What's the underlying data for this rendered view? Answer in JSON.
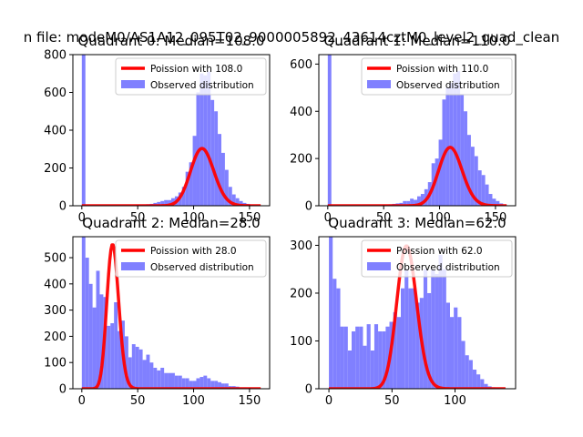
{
  "suptitle": "n file: modeM0/AS1A12_095T02_9000005892_43614cztM0_level2_quad_clean",
  "colors": {
    "hist": "#8080ff",
    "fit": "#ff0000",
    "axis": "#000000"
  },
  "chart_data": [
    {
      "type": "bar",
      "title": "Quadrant 0: Median=108.0",
      "xlabel": "",
      "ylabel": "",
      "xlim": [
        -8,
        168
      ],
      "ylim": [
        0,
        800
      ],
      "xticks": [
        0,
        50,
        100,
        150
      ],
      "yticks": [
        0,
        200,
        400,
        600,
        800
      ],
      "bin_width": 3.2,
      "series": [
        {
          "name": "Observed distribution",
          "kind": "hist",
          "bin_starts": [
            0,
            3.2,
            6.4,
            9.6,
            12.8,
            16,
            19.2,
            22.4,
            25.6,
            28.8,
            32,
            35.2,
            38.4,
            41.6,
            44.8,
            48,
            51.2,
            54.4,
            57.6,
            60.8,
            64,
            67.2,
            70.4,
            73.6,
            76.8,
            80,
            83.2,
            86.4,
            89.6,
            92.8,
            96,
            99.2,
            102.4,
            105.6,
            108.8,
            112,
            115.2,
            118.4,
            121.6,
            124.8,
            128,
            131.2,
            134.4,
            137.6,
            140.8,
            144,
            147.2,
            150.4,
            153.6,
            156.8
          ],
          "counts": [
            800,
            0,
            0,
            0,
            0,
            0,
            0,
            0,
            0,
            0,
            1,
            1,
            2,
            2,
            3,
            4,
            5,
            6,
            8,
            10,
            15,
            20,
            25,
            30,
            30,
            40,
            50,
            70,
            100,
            180,
            230,
            370,
            600,
            700,
            690,
            710,
            560,
            500,
            380,
            280,
            190,
            100,
            60,
            40,
            25,
            15,
            10,
            5,
            3,
            2
          ]
        },
        {
          "name": "Poission with 108.0",
          "kind": "pmf",
          "mean": 108,
          "scale": 7900
        }
      ],
      "legend": "top-right"
    },
    {
      "type": "bar",
      "title": "Quadrant 1: Median=110.0",
      "xlabel": "",
      "ylabel": "",
      "xlim": [
        -8,
        168
      ],
      "ylim": [
        0,
        640
      ],
      "xticks": [
        0,
        50,
        100,
        150
      ],
      "yticks": [
        0,
        200,
        400,
        600
      ],
      "bin_width": 3.2,
      "series": [
        {
          "name": "Observed distribution",
          "kind": "hist",
          "bin_starts": [
            0,
            3.2,
            6.4,
            9.6,
            12.8,
            16,
            19.2,
            22.4,
            25.6,
            28.8,
            32,
            35.2,
            38.4,
            41.6,
            44.8,
            48,
            51.2,
            54.4,
            57.6,
            60.8,
            64,
            67.2,
            70.4,
            73.6,
            76.8,
            80,
            83.2,
            86.4,
            89.6,
            92.8,
            96,
            99.2,
            102.4,
            105.6,
            108.8,
            112,
            115.2,
            118.4,
            121.6,
            124.8,
            128,
            131.2,
            134.4,
            137.6,
            140.8,
            144,
            147.2,
            150.4,
            153.6,
            156.8
          ],
          "counts": [
            640,
            0,
            0,
            0,
            0,
            0,
            0,
            0,
            0,
            0,
            0,
            0,
            1,
            1,
            2,
            3,
            4,
            6,
            8,
            10,
            12,
            20,
            20,
            30,
            25,
            40,
            50,
            70,
            100,
            180,
            200,
            280,
            450,
            500,
            520,
            560,
            570,
            470,
            400,
            300,
            250,
            210,
            150,
            130,
            90,
            50,
            30,
            20,
            10,
            5
          ]
        },
        {
          "name": "Poission with 110.0",
          "kind": "pmf",
          "mean": 110,
          "scale": 6500
        }
      ],
      "legend": "top-right"
    },
    {
      "type": "bar",
      "title": "Quadrant 2: Median=28.0",
      "xlabel": "",
      "ylabel": "",
      "xlim": [
        -8,
        168
      ],
      "ylim": [
        0,
        580
      ],
      "xticks": [
        0,
        50,
        100,
        150
      ],
      "yticks": [
        0,
        100,
        200,
        300,
        400,
        500
      ],
      "bin_width": 3.2,
      "series": [
        {
          "name": "Observed distribution",
          "kind": "hist",
          "bin_starts": [
            0,
            3.2,
            6.4,
            9.6,
            12.8,
            16,
            19.2,
            22.4,
            25.6,
            28.8,
            32,
            35.2,
            38.4,
            41.6,
            44.8,
            48,
            51.2,
            54.4,
            57.6,
            60.8,
            64,
            67.2,
            70.4,
            73.6,
            76.8,
            80,
            83.2,
            86.4,
            89.6,
            92.8,
            96,
            99.2,
            102.4,
            105.6,
            108.8,
            112,
            115.2,
            118.4,
            121.6,
            124.8,
            128,
            131.2,
            134.4,
            137.6,
            140.8,
            144,
            147.2,
            150.4,
            153.6,
            156.8
          ],
          "counts": [
            580,
            500,
            400,
            310,
            450,
            360,
            350,
            240,
            250,
            330,
            220,
            260,
            200,
            120,
            170,
            160,
            150,
            110,
            130,
            100,
            80,
            70,
            80,
            60,
            60,
            60,
            50,
            50,
            40,
            40,
            30,
            30,
            40,
            45,
            50,
            40,
            30,
            30,
            25,
            20,
            20,
            10,
            10,
            8,
            5,
            5,
            3,
            2,
            1,
            1
          ]
        },
        {
          "name": "Poission with 28.0",
          "kind": "pmf",
          "mean": 28,
          "scale": 7300
        }
      ],
      "legend": "top-right"
    },
    {
      "type": "bar",
      "title": "Quadrant 3: Median=62.0",
      "xlabel": "",
      "ylabel": "",
      "xlim": [
        -8,
        148
      ],
      "ylim": [
        0,
        318
      ],
      "xticks": [
        0,
        50,
        100
      ],
      "yticks": [
        0,
        100,
        200,
        300
      ],
      "bin_width": 3.0,
      "series": [
        {
          "name": "Observed distribution",
          "kind": "hist",
          "bin_starts": [
            0,
            3,
            6,
            9,
            12,
            15,
            18,
            21,
            24,
            27,
            30,
            33,
            36,
            39,
            42,
            45,
            48,
            51,
            54,
            57,
            60,
            63,
            66,
            69,
            72,
            75,
            78,
            81,
            84,
            87,
            90,
            93,
            96,
            99,
            102,
            105,
            108,
            111,
            114,
            117,
            120,
            123,
            126,
            129,
            132,
            135,
            138
          ],
          "counts": [
            318,
            230,
            210,
            130,
            130,
            80,
            120,
            130,
            130,
            90,
            135,
            80,
            135,
            120,
            120,
            130,
            140,
            160,
            150,
            210,
            250,
            210,
            210,
            180,
            190,
            250,
            200,
            250,
            240,
            280,
            250,
            180,
            150,
            170,
            150,
            100,
            70,
            60,
            40,
            30,
            20,
            10,
            5,
            3,
            2,
            1,
            1
          ]
        },
        {
          "name": "Poission with 62.0",
          "kind": "pmf",
          "mean": 62,
          "scale": 5900
        }
      ],
      "legend": "top-right"
    }
  ]
}
